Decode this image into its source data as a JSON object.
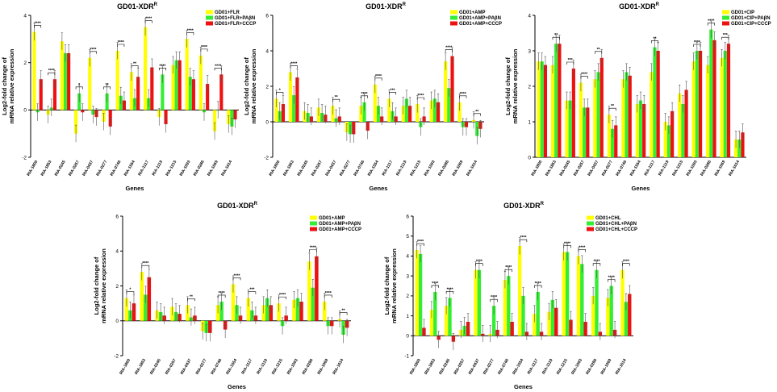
{
  "colors": {
    "s1": "#ffff00",
    "s2": "#33ee33",
    "s3": "#ee1111"
  },
  "chart_data": [
    {
      "type": "bar",
      "title": "GD01-XDR",
      "title_sup": "R",
      "xlabel": "Genes",
      "ylabel": [
        "Log2-fold change of",
        "mRNA relative expression"
      ],
      "ylim": [
        -2,
        4
      ],
      "yticks": [
        -2,
        0,
        2,
        4
      ],
      "categories": [
        "RIA-1800",
        "RIA-1853",
        "RIA-0245",
        "RIA-0257",
        "RIA-0437",
        "RIA-0277",
        "RIA-0746",
        "RIA-1554",
        "RIA-1117",
        "RIA-1119",
        "RIA-1215",
        "RIA-1093",
        "RIA-0286",
        "RIA-1069",
        "RIA-1614"
      ],
      "series": [
        {
          "name": "GD01+FLR",
          "values": [
            3.3,
            -0.2,
            2.9,
            -1.0,
            2.2,
            -0.5,
            2.5,
            1.6,
            3.5,
            -0.3,
            1.9,
            3.0,
            2.3,
            -0.9,
            -0.6
          ]
        },
        {
          "name": "GD01+FLR+PAβN",
          "values": [
            -0.1,
            0.1,
            2.4,
            0.7,
            -0.2,
            0.7,
            0.6,
            0.5,
            0.5,
            1.5,
            2.1,
            1.4,
            -0.1,
            0.0,
            -0.7
          ]
        },
        {
          "name": "GD01+FLR+CCCP",
          "values": [
            1.3,
            1.3,
            2.4,
            -0.1,
            -0.3,
            -0.7,
            0.4,
            1.4,
            1.8,
            -0.6,
            2.1,
            1.3,
            1.1,
            1.5,
            -0.4
          ]
        }
      ],
      "significance": [
        "****",
        "****",
        "",
        "*",
        "****",
        "**",
        "****",
        "**",
        "****",
        "****",
        "",
        "****",
        "****",
        "****",
        ""
      ]
    },
    {
      "type": "bar",
      "title": "GD01-XDR",
      "title_sup": "R",
      "xlabel": "Genes",
      "ylabel": [
        "Log2-fold change of",
        "mRNA relative expression"
      ],
      "ylim": [
        -2,
        6
      ],
      "yticks": [
        -2,
        0,
        2,
        4,
        6
      ],
      "categories": [
        "RIA-1800",
        "RIA-1853",
        "RIA-0245",
        "RIA-0257",
        "RIA-0437",
        "RIA-0277",
        "RIA-0746",
        "RIA-1554",
        "RIA-1117",
        "RIA-1119",
        "RIA-1215",
        "RIA-1093",
        "RIA-0286",
        "RIA-1069",
        "RIA-1614"
      ],
      "series": [
        {
          "name": "GD01+AMP",
          "values": [
            1.3,
            2.8,
            0.6,
            0.8,
            0.9,
            -0.6,
            0.9,
            2.1,
            1.3,
            0.9,
            1.0,
            1.2,
            3.4,
            1.1,
            0.1
          ]
        },
        {
          "name": "GD01+AMP+PAβN",
          "values": [
            0.6,
            1.5,
            0.5,
            0.5,
            0.2,
            -0.7,
            1.1,
            0.9,
            0.6,
            1.3,
            -0.3,
            1.3,
            1.9,
            -0.3,
            -0.8
          ]
        },
        {
          "name": "GD01+AMP+CCCP",
          "values": [
            1.0,
            2.5,
            0.3,
            0.4,
            0.3,
            -0.7,
            -0.5,
            0.3,
            0.3,
            0.9,
            0.3,
            1.1,
            3.7,
            -0.3,
            -0.4
          ]
        }
      ],
      "significance": [
        "*",
        "****",
        "",
        "",
        "**",
        "",
        "****",
        "****",
        "***",
        "",
        "****",
        "",
        "****",
        "****",
        "**"
      ]
    },
    {
      "type": "bar",
      "title": "GD01-XDR",
      "title_sup": "R",
      "xlabel": "Genes",
      "ylabel": [
        "Log2-fold change of",
        "mRNA relative expression"
      ],
      "ylim": [
        0,
        4
      ],
      "yticks": [
        0,
        1,
        2,
        3,
        4
      ],
      "categories": [
        "RIA-1800",
        "RIA-1853",
        "RIA-0245",
        "RIA-0257",
        "RIA-0437",
        "RIA-0277",
        "RIA-0746",
        "RIA-1554",
        "RIA-1117",
        "RIA-1119",
        "RIA-1215",
        "RIA-1093",
        "RIA-0286",
        "RIA-1069",
        "RIA-1614"
      ],
      "series": [
        {
          "name": "GD01+CIP",
          "values": [
            2.7,
            2.6,
            1.6,
            2.1,
            2.2,
            1.2,
            2.2,
            1.5,
            2.4,
            1.0,
            1.8,
            2.7,
            2.6,
            2.8,
            0.5
          ]
        },
        {
          "name": "GD01+CIP+PAβN",
          "values": [
            2.7,
            3.2,
            1.6,
            1.4,
            2.4,
            0.8,
            2.4,
            1.6,
            3.1,
            0.9,
            1.5,
            3.0,
            3.6,
            3.0,
            0.5
          ]
        },
        {
          "name": "GD01+CIP+CCCP",
          "values": [
            2.6,
            3.2,
            2.5,
            1.4,
            2.8,
            0.9,
            2.3,
            1.5,
            3.0,
            1.3,
            1.9,
            3.0,
            3.3,
            3.2,
            0.7
          ]
        }
      ],
      "significance": [
        "",
        "**",
        "***",
        "****",
        "**",
        "**",
        "",
        "",
        "**",
        "",
        "",
        "****",
        "****",
        "***",
        ""
      ]
    },
    {
      "type": "bar",
      "title": "GD01-XDR",
      "title_sup": "R",
      "xlabel": "Genes",
      "ylabel": [
        "Log2-fold change of",
        "mRNA relative expression"
      ],
      "ylim": [
        -2,
        6
      ],
      "yticks": [
        -2,
        0,
        2,
        4,
        6
      ],
      "categories": [
        "RIA-1800",
        "RIA-1853",
        "RIA-0245",
        "RIA-0257",
        "RIA-0437",
        "RIA-0277",
        "RIA-0746",
        "RIA-1554",
        "RIA-1117",
        "RIA-1119",
        "RIA-1215",
        "RIA-1093",
        "RIA-0286",
        "RIA-1069",
        "RIA-1614"
      ],
      "series": [
        {
          "name": "GD01+AMP",
          "values": [
            1.3,
            2.8,
            0.6,
            0.8,
            0.9,
            -0.6,
            0.9,
            2.1,
            1.3,
            0.9,
            1.0,
            1.2,
            3.4,
            1.1,
            0.1
          ]
        },
        {
          "name": "GD01+AMP+PAβN",
          "values": [
            0.6,
            1.5,
            0.5,
            0.5,
            0.2,
            -0.7,
            1.1,
            0.9,
            0.6,
            1.3,
            -0.3,
            1.3,
            1.9,
            -0.3,
            -0.8
          ]
        },
        {
          "name": "GD01+AMP+CCCP",
          "values": [
            1.0,
            2.5,
            0.3,
            0.4,
            0.3,
            -0.7,
            -0.5,
            0.3,
            0.3,
            0.9,
            0.3,
            1.1,
            3.7,
            -0.3,
            -0.4
          ]
        }
      ],
      "significance": [
        "*",
        "****",
        "",
        "",
        "**",
        "",
        "****",
        "****",
        "***",
        "",
        "****",
        "",
        "****",
        "****",
        "**"
      ]
    },
    {
      "type": "bar",
      "title": "GD01-XDR",
      "title_sup": "R",
      "xlabel": "Genes",
      "ylabel": [
        "Log2-fold change of",
        "mRNA relative expression"
      ],
      "ylim": [
        -1,
        6
      ],
      "yticks": [
        -1,
        0,
        1,
        2,
        3,
        4,
        5,
        6
      ],
      "categories": [
        "RIA-1800",
        "RIA-1853",
        "RIA-0245",
        "RIA-0257",
        "RIA-0437",
        "RIA-0277",
        "RIA-0746",
        "RIA-1554",
        "RIA-1117",
        "RIA-1119",
        "RIA-1215",
        "RIA-1093",
        "RIA-0286",
        "RIA-1069",
        "RIA-1614"
      ],
      "series": [
        {
          "name": "GD01+CHL",
          "values": [
            4.3,
            1.3,
            1.5,
            0.3,
            3.3,
            0.1,
            2.8,
            4.5,
            1.1,
            1.2,
            4.2,
            4.0,
            2.0,
            1.9,
            3.3
          ]
        },
        {
          "name": "GD01+CHL+PAβN",
          "values": [
            4.1,
            2.2,
            1.9,
            0.5,
            3.3,
            1.5,
            3.0,
            2.0,
            2.2,
            1.8,
            4.2,
            3.6,
            3.3,
            2.5,
            1.7
          ]
        },
        {
          "name": "GD01+CHL+CCCP",
          "values": [
            0.4,
            -0.2,
            -0.3,
            0.7,
            0.1,
            0.3,
            0.7,
            0.2,
            0.2,
            1.4,
            0.8,
            0.7,
            0.2,
            0.3,
            2.1
          ]
        }
      ],
      "significance": [
        "****",
        "****",
        "****",
        "",
        "****",
        "****",
        "****",
        "****",
        "****",
        "",
        "****",
        "****",
        "****",
        "****",
        "****"
      ]
    }
  ]
}
